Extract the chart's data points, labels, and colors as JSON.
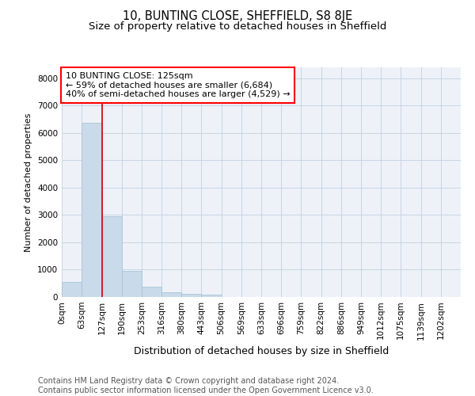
{
  "title": "10, BUNTING CLOSE, SHEFFIELD, S8 8JE",
  "subtitle": "Size of property relative to detached houses in Sheffield",
  "xlabel": "Distribution of detached houses by size in Sheffield",
  "ylabel": "Number of detached properties",
  "bar_color": "#c9daea",
  "bar_edge_color": "#a8c4d8",
  "grid_color": "#c8d4e4",
  "background_color": "#eef2f8",
  "annotation_line1": "10 BUNTING CLOSE: 125sqm",
  "annotation_line2": "← 59% of detached houses are smaller (6,684)",
  "annotation_line3": "40% of semi-detached houses are larger (4,529) →",
  "property_line_x": 127,
  "property_line_color": "#cc0000",
  "bin_edges": [
    0,
    63,
    127,
    190,
    253,
    316,
    380,
    443,
    506,
    569,
    633,
    696,
    759,
    822,
    886,
    949,
    1012,
    1075,
    1139,
    1202,
    1265
  ],
  "bar_heights": [
    560,
    6380,
    2960,
    960,
    390,
    160,
    130,
    80,
    0,
    0,
    0,
    0,
    0,
    0,
    0,
    0,
    0,
    0,
    0,
    0
  ],
  "ylim": [
    0,
    8400
  ],
  "yticks": [
    0,
    1000,
    2000,
    3000,
    4000,
    5000,
    6000,
    7000,
    8000
  ],
  "footer_text": "Contains HM Land Registry data © Crown copyright and database right 2024.\nContains public sector information licensed under the Open Government Licence v3.0.",
  "title_fontsize": 10.5,
  "subtitle_fontsize": 9.5,
  "xlabel_fontsize": 9,
  "ylabel_fontsize": 8,
  "tick_fontsize": 7.5,
  "annotation_fontsize": 8,
  "footer_fontsize": 7
}
